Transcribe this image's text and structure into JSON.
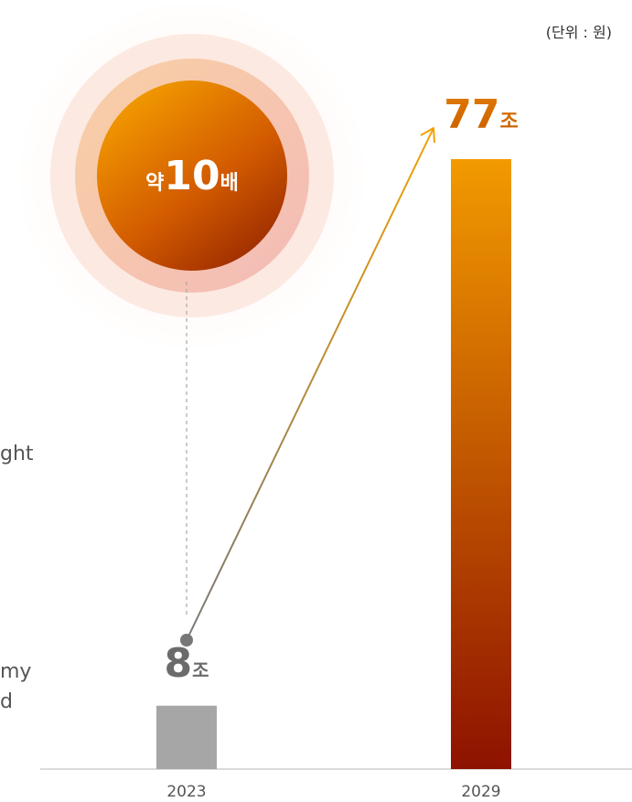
{
  "unit_label": "(단위 : 원)",
  "multiplier_badge": {
    "prefix": "약",
    "number": "10",
    "suffix": "배"
  },
  "left_text_fragments": [
    "ght",
    "my",
    "d"
  ],
  "colors": {
    "bar_2023": "#a6a6a6",
    "bar_2029_top": "#f29a00",
    "bar_2029_bottom": "#8e1200",
    "label_2023": "#6b6b6b",
    "label_2029": "#d37600",
    "arrow_start": "#777777",
    "arrow_end": "#f2a000"
  },
  "chart_data": {
    "type": "bar",
    "categories": [
      "2023",
      "2029"
    ],
    "values": [
      8,
      77
    ],
    "value_labels": [
      {
        "number": "8",
        "unit": "조"
      },
      {
        "number": "77",
        "unit": "조"
      }
    ],
    "unit": "(단위 : 원)",
    "title": "",
    "xlabel": "",
    "ylabel": "",
    "ylim": [
      0,
      80
    ],
    "grid": false,
    "legend": "none"
  }
}
